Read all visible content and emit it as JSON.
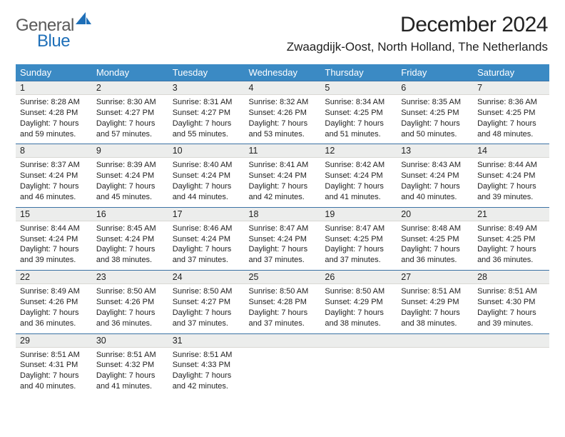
{
  "brand": {
    "part1": "General",
    "part2": "Blue"
  },
  "title": "December 2024",
  "location": "Zwaagdijk-Oost, North Holland, The Netherlands",
  "colors": {
    "header_bg": "#3b8ac4",
    "header_fg": "#ffffff",
    "daynum_bg": "#ecedec",
    "daynum_border_top": "#3b72a4",
    "brand_blue": "#1e6fb8",
    "text": "#222222"
  },
  "typography": {
    "title_fontsize": 30,
    "location_fontsize": 17,
    "dayheader_fontsize": 13,
    "daycontent_fontsize": 11
  },
  "weekdays": [
    "Sunday",
    "Monday",
    "Tuesday",
    "Wednesday",
    "Thursday",
    "Friday",
    "Saturday"
  ],
  "days": [
    {
      "n": "1",
      "sunrise": "Sunrise: 8:28 AM",
      "sunset": "Sunset: 4:28 PM",
      "daylight": "Daylight: 7 hours and 59 minutes."
    },
    {
      "n": "2",
      "sunrise": "Sunrise: 8:30 AM",
      "sunset": "Sunset: 4:27 PM",
      "daylight": "Daylight: 7 hours and 57 minutes."
    },
    {
      "n": "3",
      "sunrise": "Sunrise: 8:31 AM",
      "sunset": "Sunset: 4:27 PM",
      "daylight": "Daylight: 7 hours and 55 minutes."
    },
    {
      "n": "4",
      "sunrise": "Sunrise: 8:32 AM",
      "sunset": "Sunset: 4:26 PM",
      "daylight": "Daylight: 7 hours and 53 minutes."
    },
    {
      "n": "5",
      "sunrise": "Sunrise: 8:34 AM",
      "sunset": "Sunset: 4:25 PM",
      "daylight": "Daylight: 7 hours and 51 minutes."
    },
    {
      "n": "6",
      "sunrise": "Sunrise: 8:35 AM",
      "sunset": "Sunset: 4:25 PM",
      "daylight": "Daylight: 7 hours and 50 minutes."
    },
    {
      "n": "7",
      "sunrise": "Sunrise: 8:36 AM",
      "sunset": "Sunset: 4:25 PM",
      "daylight": "Daylight: 7 hours and 48 minutes."
    },
    {
      "n": "8",
      "sunrise": "Sunrise: 8:37 AM",
      "sunset": "Sunset: 4:24 PM",
      "daylight": "Daylight: 7 hours and 46 minutes."
    },
    {
      "n": "9",
      "sunrise": "Sunrise: 8:39 AM",
      "sunset": "Sunset: 4:24 PM",
      "daylight": "Daylight: 7 hours and 45 minutes."
    },
    {
      "n": "10",
      "sunrise": "Sunrise: 8:40 AM",
      "sunset": "Sunset: 4:24 PM",
      "daylight": "Daylight: 7 hours and 44 minutes."
    },
    {
      "n": "11",
      "sunrise": "Sunrise: 8:41 AM",
      "sunset": "Sunset: 4:24 PM",
      "daylight": "Daylight: 7 hours and 42 minutes."
    },
    {
      "n": "12",
      "sunrise": "Sunrise: 8:42 AM",
      "sunset": "Sunset: 4:24 PM",
      "daylight": "Daylight: 7 hours and 41 minutes."
    },
    {
      "n": "13",
      "sunrise": "Sunrise: 8:43 AM",
      "sunset": "Sunset: 4:24 PM",
      "daylight": "Daylight: 7 hours and 40 minutes."
    },
    {
      "n": "14",
      "sunrise": "Sunrise: 8:44 AM",
      "sunset": "Sunset: 4:24 PM",
      "daylight": "Daylight: 7 hours and 39 minutes."
    },
    {
      "n": "15",
      "sunrise": "Sunrise: 8:44 AM",
      "sunset": "Sunset: 4:24 PM",
      "daylight": "Daylight: 7 hours and 39 minutes."
    },
    {
      "n": "16",
      "sunrise": "Sunrise: 8:45 AM",
      "sunset": "Sunset: 4:24 PM",
      "daylight": "Daylight: 7 hours and 38 minutes."
    },
    {
      "n": "17",
      "sunrise": "Sunrise: 8:46 AM",
      "sunset": "Sunset: 4:24 PM",
      "daylight": "Daylight: 7 hours and 37 minutes."
    },
    {
      "n": "18",
      "sunrise": "Sunrise: 8:47 AM",
      "sunset": "Sunset: 4:24 PM",
      "daylight": "Daylight: 7 hours and 37 minutes."
    },
    {
      "n": "19",
      "sunrise": "Sunrise: 8:47 AM",
      "sunset": "Sunset: 4:25 PM",
      "daylight": "Daylight: 7 hours and 37 minutes."
    },
    {
      "n": "20",
      "sunrise": "Sunrise: 8:48 AM",
      "sunset": "Sunset: 4:25 PM",
      "daylight": "Daylight: 7 hours and 36 minutes."
    },
    {
      "n": "21",
      "sunrise": "Sunrise: 8:49 AM",
      "sunset": "Sunset: 4:25 PM",
      "daylight": "Daylight: 7 hours and 36 minutes."
    },
    {
      "n": "22",
      "sunrise": "Sunrise: 8:49 AM",
      "sunset": "Sunset: 4:26 PM",
      "daylight": "Daylight: 7 hours and 36 minutes."
    },
    {
      "n": "23",
      "sunrise": "Sunrise: 8:50 AM",
      "sunset": "Sunset: 4:26 PM",
      "daylight": "Daylight: 7 hours and 36 minutes."
    },
    {
      "n": "24",
      "sunrise": "Sunrise: 8:50 AM",
      "sunset": "Sunset: 4:27 PM",
      "daylight": "Daylight: 7 hours and 37 minutes."
    },
    {
      "n": "25",
      "sunrise": "Sunrise: 8:50 AM",
      "sunset": "Sunset: 4:28 PM",
      "daylight": "Daylight: 7 hours and 37 minutes."
    },
    {
      "n": "26",
      "sunrise": "Sunrise: 8:50 AM",
      "sunset": "Sunset: 4:29 PM",
      "daylight": "Daylight: 7 hours and 38 minutes."
    },
    {
      "n": "27",
      "sunrise": "Sunrise: 8:51 AM",
      "sunset": "Sunset: 4:29 PM",
      "daylight": "Daylight: 7 hours and 38 minutes."
    },
    {
      "n": "28",
      "sunrise": "Sunrise: 8:51 AM",
      "sunset": "Sunset: 4:30 PM",
      "daylight": "Daylight: 7 hours and 39 minutes."
    },
    {
      "n": "29",
      "sunrise": "Sunrise: 8:51 AM",
      "sunset": "Sunset: 4:31 PM",
      "daylight": "Daylight: 7 hours and 40 minutes."
    },
    {
      "n": "30",
      "sunrise": "Sunrise: 8:51 AM",
      "sunset": "Sunset: 4:32 PM",
      "daylight": "Daylight: 7 hours and 41 minutes."
    },
    {
      "n": "31",
      "sunrise": "Sunrise: 8:51 AM",
      "sunset": "Sunset: 4:33 PM",
      "daylight": "Daylight: 7 hours and 42 minutes."
    }
  ]
}
